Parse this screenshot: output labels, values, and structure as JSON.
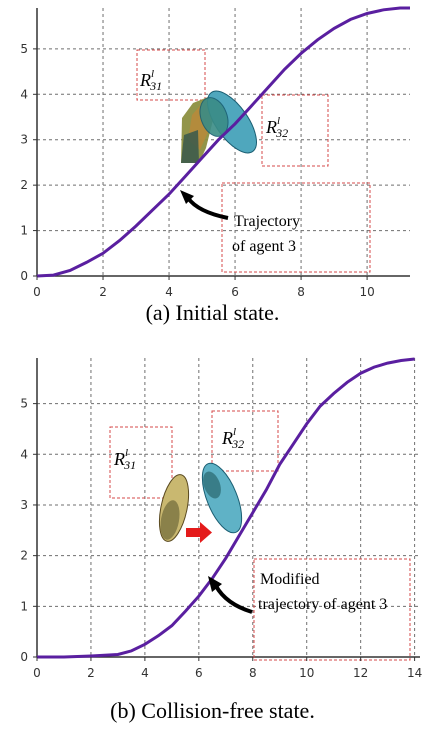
{
  "figure": [
    {
      "caption": "(a) Initial state.",
      "annotation_lines": [
        "Trajectory",
        "of agent 3"
      ],
      "region_labels": [
        {
          "base": "R",
          "sup": "l",
          "sub": "31"
        },
        {
          "base": "R",
          "sup": "l",
          "sub": "32"
        }
      ]
    },
    {
      "caption": "(b) Collision-free state.",
      "annotation_lines": [
        "Modified",
        "trajectory of agent 3"
      ],
      "region_labels": [
        {
          "base": "R",
          "sup": "l",
          "sub": "31"
        },
        {
          "base": "R",
          "sup": "l",
          "sub": "32"
        }
      ]
    }
  ],
  "colors": {
    "trajectory": "#5a1fa0",
    "grid": "#6f6f6f",
    "region_box": "#d44848",
    "agent_left_a": "#b9a35a",
    "agent_right": "#4fa7bd",
    "arrow": "#e41b1b",
    "plot_border": "#333333"
  },
  "chart_data": [
    {
      "type": "line",
      "title": "",
      "xlabel": "",
      "ylabel": "",
      "xlim": [
        0,
        11.3
      ],
      "ylim": [
        0,
        5.9
      ],
      "xticks": [
        0,
        2,
        4,
        6,
        8,
        10
      ],
      "yticks": [
        0,
        1,
        2,
        3,
        4,
        5
      ],
      "grid": true,
      "series": [
        {
          "x": [
            0,
            0.5,
            1,
            1.5,
            2,
            2.5,
            3,
            3.5,
            4,
            4.5,
            5,
            5.5,
            6,
            6.5,
            7,
            7.5,
            8,
            8.5,
            9,
            9.5,
            10,
            10.5,
            11,
            11.3
          ],
          "y": [
            0,
            0.02,
            0.12,
            0.3,
            0.5,
            0.78,
            1.1,
            1.45,
            1.8,
            2.2,
            2.6,
            3.0,
            3.35,
            3.75,
            4.15,
            4.55,
            4.9,
            5.2,
            5.45,
            5.65,
            5.78,
            5.86,
            5.9,
            5.9
          ]
        }
      ]
    },
    {
      "type": "line",
      "title": "",
      "xlabel": "",
      "ylabel": "",
      "xlim": [
        0,
        14.2
      ],
      "ylim": [
        0,
        5.9
      ],
      "xticks": [
        0,
        2,
        4,
        6,
        8,
        10,
        12,
        14
      ],
      "yticks": [
        0,
        1,
        2,
        3,
        4,
        5
      ],
      "grid": true,
      "series": [
        {
          "x": [
            0,
            1,
            2,
            3,
            3.5,
            4,
            4.5,
            5,
            5.5,
            6,
            6.5,
            7,
            7.5,
            8,
            8.5,
            9,
            9.5,
            10,
            10.5,
            11,
            11.5,
            12,
            12.5,
            13,
            13.5,
            14
          ],
          "y": [
            0,
            0,
            0.02,
            0.05,
            0.12,
            0.25,
            0.42,
            0.62,
            0.9,
            1.2,
            1.55,
            1.95,
            2.4,
            2.85,
            3.3,
            3.8,
            4.2,
            4.6,
            4.95,
            5.2,
            5.42,
            5.6,
            5.72,
            5.8,
            5.85,
            5.88
          ]
        }
      ]
    }
  ]
}
